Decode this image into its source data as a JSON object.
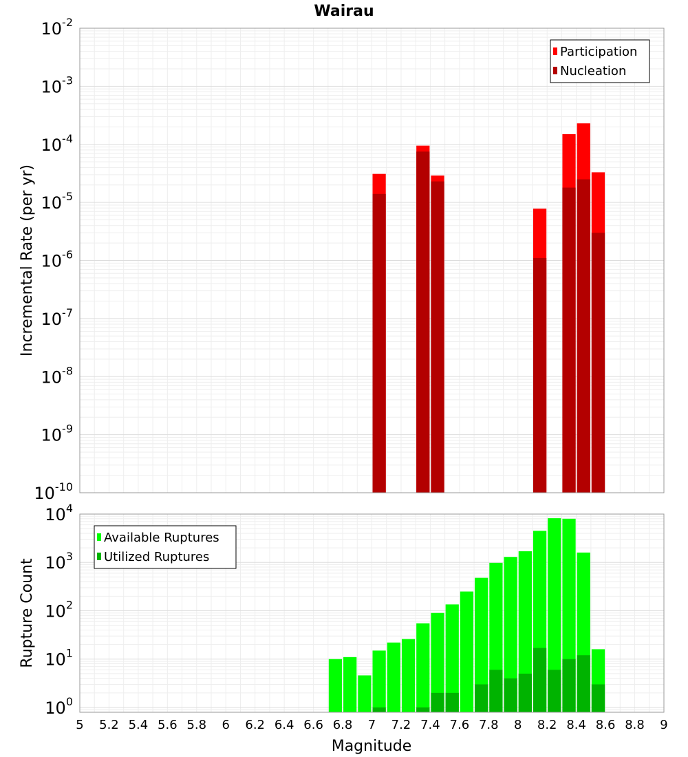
{
  "chart_data": {
    "type": "bar",
    "title": "Wairau",
    "xlabel": "Magnitude",
    "xlim": [
      5,
      9
    ],
    "x_ticks": [
      "5",
      "5.2",
      "5.4",
      "5.6",
      "5.8",
      "6",
      "6.2",
      "6.4",
      "6.6",
      "6.8",
      "7",
      "7.2",
      "7.4",
      "7.6",
      "7.8",
      "8",
      "8.2",
      "8.4",
      "8.6",
      "8.8",
      "9"
    ],
    "bin_width": 0.1,
    "panels": [
      {
        "name": "rates",
        "ylabel": "Incremental Rate (per yr)",
        "yscale": "log",
        "ylim_exp": [
          -10,
          -2
        ],
        "y_ticks": [
          {
            "base": "10",
            "exp": "-2"
          },
          {
            "base": "10",
            "exp": "-3"
          },
          {
            "base": "10",
            "exp": "-4"
          },
          {
            "base": "10",
            "exp": "-5"
          },
          {
            "base": "10",
            "exp": "-6"
          },
          {
            "base": "10",
            "exp": "-7"
          },
          {
            "base": "10",
            "exp": "-8"
          },
          {
            "base": "10",
            "exp": "-9"
          },
          {
            "base": "10",
            "exp": "-10"
          }
        ],
        "legend_position": "top-right",
        "series": [
          {
            "name": "Participation",
            "color": "#ff0000",
            "x": [
              7.05,
              7.35,
              7.45,
              8.15,
              8.35,
              8.45,
              8.55
            ],
            "values": [
              3.1e-05,
              9.5e-05,
              2.9e-05,
              7.8e-06,
              0.00015,
              0.00023,
              3.3e-05
            ]
          },
          {
            "name": "Nucleation",
            "color": "#b30000",
            "x": [
              7.05,
              7.35,
              7.45,
              8.15,
              8.35,
              8.45,
              8.55
            ],
            "values": [
              1.4e-05,
              7.5e-05,
              2.3e-05,
              1.1e-06,
              1.8e-05,
              2.5e-05,
              3e-06
            ]
          }
        ]
      },
      {
        "name": "counts",
        "ylabel": "Rupture Count",
        "yscale": "log",
        "ylim_exp": [
          -0.1,
          4
        ],
        "y_ticks": [
          {
            "base": "10",
            "exp": "4"
          },
          {
            "base": "10",
            "exp": "3"
          },
          {
            "base": "10",
            "exp": "2"
          },
          {
            "base": "10",
            "exp": "1"
          },
          {
            "base": "10",
            "exp": "0"
          }
        ],
        "legend_position": "top-left",
        "series": [
          {
            "name": "Available Ruptures",
            "color": "#00ff00",
            "x": [
              6.75,
              6.85,
              6.95,
              7.05,
              7.15,
              7.25,
              7.35,
              7.45,
              7.55,
              7.65,
              7.75,
              7.85,
              7.95,
              8.05,
              8.15,
              8.25,
              8.35,
              8.45,
              8.55
            ],
            "values": [
              10,
              11,
              4.6,
              15,
              22,
              26,
              55,
              90,
              135,
              250,
              480,
              980,
              1300,
              1700,
              4500,
              8200,
              8000,
              1600,
              16
            ]
          },
          {
            "name": "Utilized Ruptures",
            "color": "#00b300",
            "x": [
              7.05,
              7.35,
              7.45,
              7.55,
              7.75,
              7.85,
              7.95,
              8.05,
              8.15,
              8.25,
              8.35,
              8.45,
              8.55
            ],
            "values": [
              1,
              1,
              2,
              2,
              3,
              6,
              4,
              5,
              17,
              6,
              10,
              12,
              3
            ]
          }
        ]
      }
    ]
  }
}
